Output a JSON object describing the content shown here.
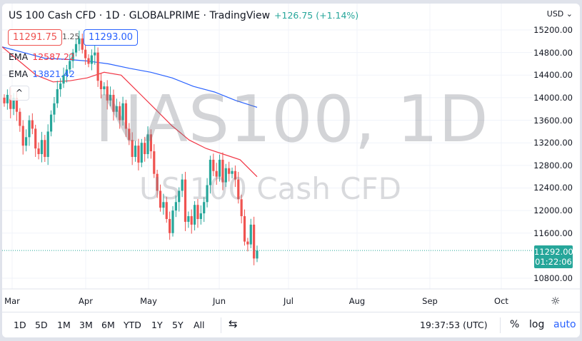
{
  "header": {
    "title": "US 100 Cash CFD · 1D · GLOBALPRIME · TradingView",
    "change": "+126.75 (+1.14%)"
  },
  "quote": {
    "bid": "11291.75",
    "spread": "1.25",
    "ask": "11293.00"
  },
  "indicators": [
    {
      "label": "EMA",
      "value": "12587.22",
      "color": "#f23645"
    },
    {
      "label": "EMA",
      "value": "13821.42",
      "color": "#2962ff"
    }
  ],
  "watermark": {
    "symbol": "NAS100, 1D",
    "name": "US 100 Cash CFD"
  },
  "price_axis": {
    "currency": "USD",
    "ticks": [
      "15200.00",
      "14800.00",
      "14400.00",
      "14000.00",
      "13600.00",
      "13200.00",
      "12800.00",
      "12400.00",
      "12000.00",
      "11600.00",
      "10800.00"
    ],
    "last_price": "11292.00",
    "countdown": "01:22:06"
  },
  "time_axis": {
    "ticks": [
      "Mar",
      "Apr",
      "May",
      "Jun",
      "Jul",
      "Aug",
      "Sep",
      "Oct"
    ]
  },
  "toolbar": {
    "ranges": [
      "1D",
      "5D",
      "1M",
      "3M",
      "6M",
      "YTD",
      "1Y",
      "5Y",
      "All"
    ],
    "time": "19:37:53 (UTC)",
    "percent": "%",
    "log": "log",
    "auto": "auto"
  },
  "chart_data": {
    "type": "candlestick",
    "closes": [
      13900,
      14050,
      13800,
      14000,
      13750,
      13500,
      13150,
      13300,
      13600,
      13450,
      13100,
      13000,
      13250,
      12950,
      13400,
      13700,
      13900,
      14150,
      14250,
      14400,
      14500,
      14650,
      14800,
      14950,
      15050,
      14850,
      14700,
      14600,
      14750,
      14800,
      14300,
      14150,
      14200,
      13950,
      14050,
      13750,
      13850,
      13600,
      13900,
      13450,
      13250,
      12950,
      13150,
      12850,
      13200,
      13000,
      13350,
      13050,
      12650,
      12350,
      12050,
      12150,
      11850,
      11600,
      12000,
      12150,
      12350,
      12550,
      11800,
      11900,
      11750,
      12100,
      11850,
      11950,
      12150,
      12450,
      12900,
      12700,
      12600,
      12900,
      12500,
      12750,
      12650,
      12700,
      12550,
      12200,
      11900,
      11450,
      11400,
      11750,
      11150,
      11292
    ],
    "ema_fast": {
      "label": "EMA",
      "values": [
        14900,
        14650,
        14400,
        14280,
        14300,
        14350,
        14450,
        14400,
        14100,
        13800,
        13500,
        13250,
        13100,
        13000,
        12900,
        12600
      ]
    },
    "ema_slow": {
      "label": "EMA",
      "values": [
        14900,
        14800,
        14700,
        14680,
        14650,
        14600,
        14520,
        14450,
        14350,
        14200,
        14100,
        13950,
        13830
      ]
    },
    "ylim": [
      10700,
      15350
    ],
    "colors": {
      "up": "#26a69a",
      "down": "#ef5350"
    }
  }
}
